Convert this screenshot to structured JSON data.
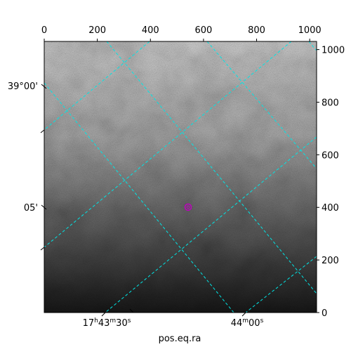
{
  "chart_data": {
    "type": "image",
    "xlabel": "pos.eq.ra",
    "xlim": [
      0,
      1026
    ],
    "xticks": [
      0,
      200,
      400,
      600,
      800,
      1000
    ],
    "ylim": [
      0,
      1031
    ],
    "yticks": [
      0,
      200,
      400,
      600,
      800,
      1000
    ],
    "ra_labels": [
      "17h43m30s",
      "44m00s"
    ],
    "dec_labels": [
      "39°00'",
      "05'"
    ],
    "marker": {
      "x": 542,
      "y": 401,
      "color": "#c000c0"
    }
  }
}
